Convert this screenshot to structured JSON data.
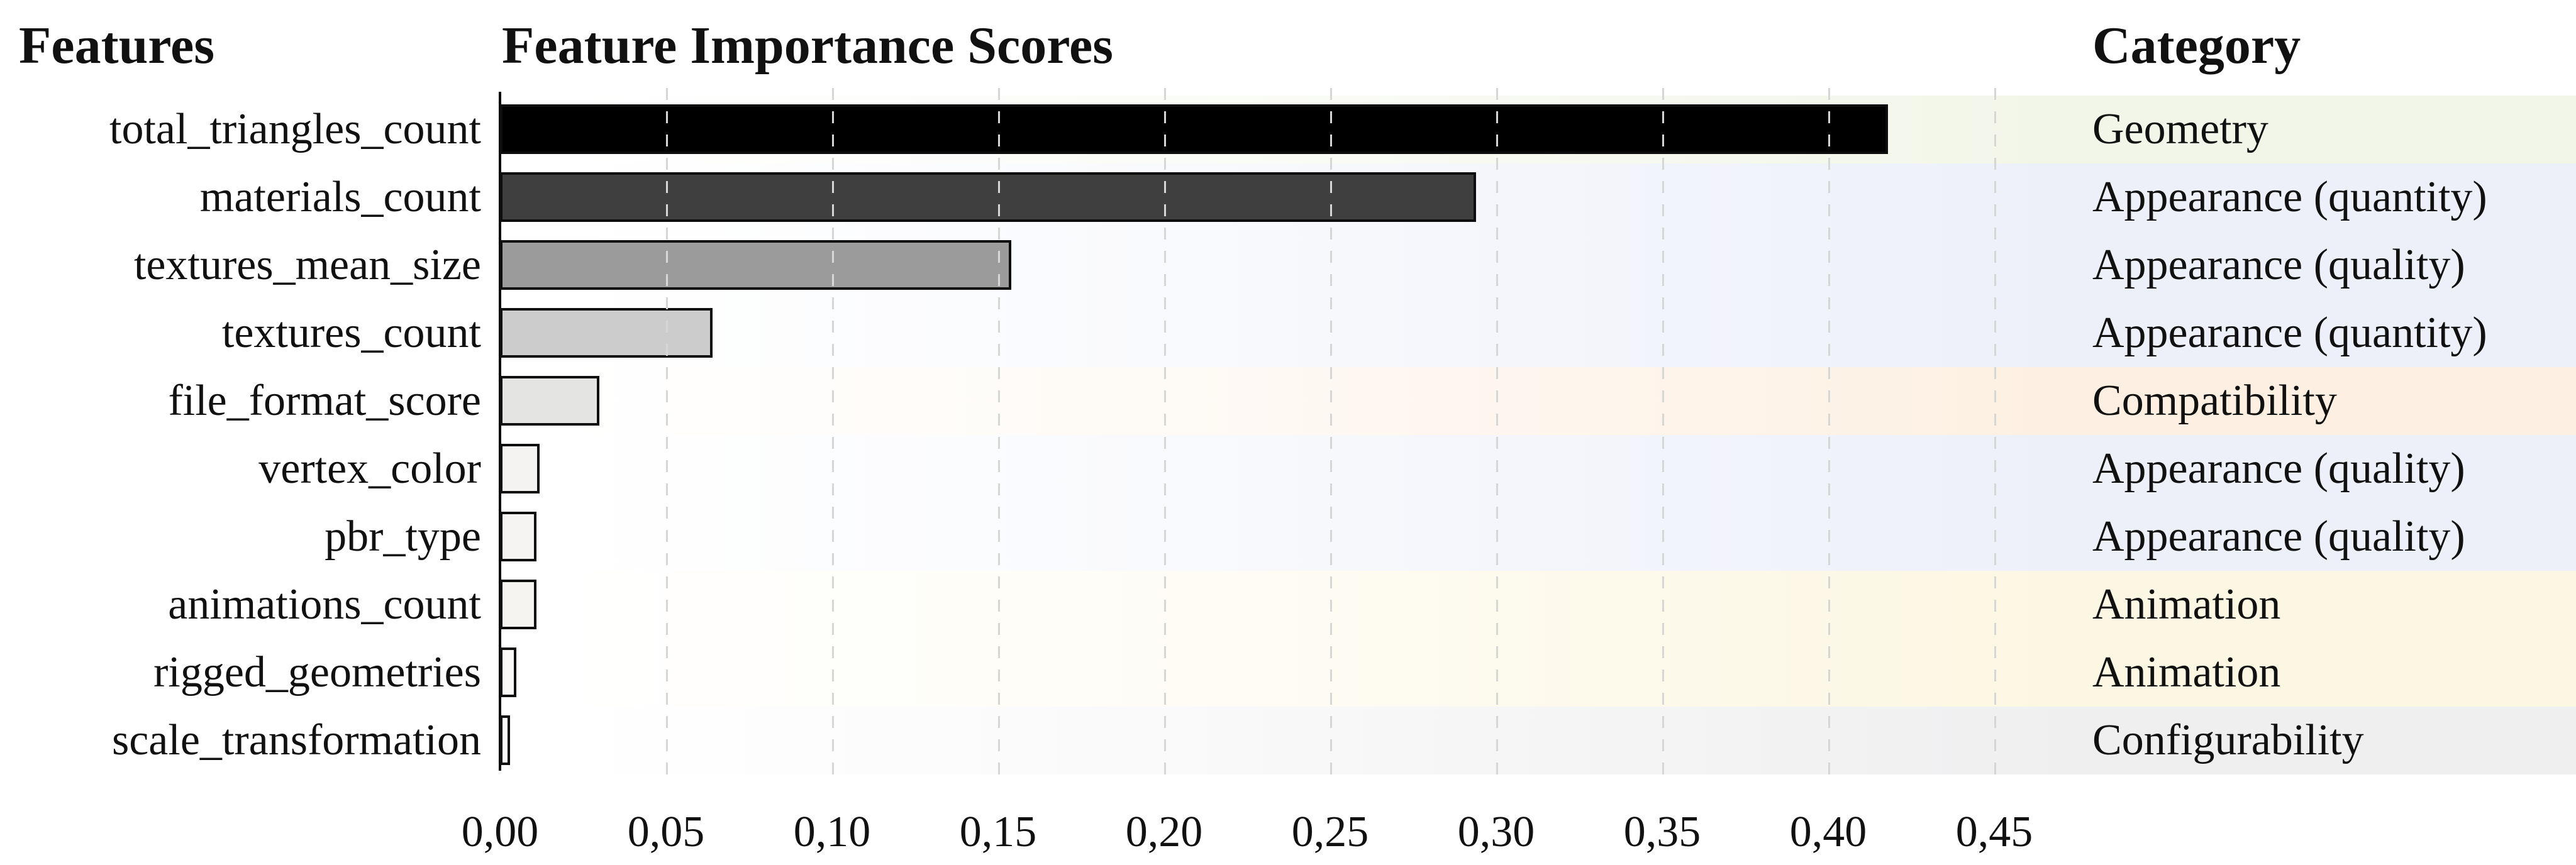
{
  "header": {
    "features_label": "Features",
    "title": "Feature Importance Scores",
    "category_label": "Category"
  },
  "chart_data": {
    "type": "bar",
    "orientation": "horizontal",
    "title": "Feature Importance Scores",
    "categories": [
      "total_triangles_count",
      "materials_count",
      "textures_mean_size",
      "textures_count",
      "file_format_score",
      "vertex_color",
      "pbr_type",
      "animations_count",
      "rigged_geometries",
      "scale_transformation"
    ],
    "values": [
      0.418,
      0.294,
      0.154,
      0.064,
      0.03,
      0.012,
      0.011,
      0.011,
      0.005,
      0.003
    ],
    "row_categories": [
      "Geometry",
      "Appearance (quantity)",
      "Appearance (quality)",
      "Appearance (quantity)",
      "Compatibility",
      "Appearance (quality)",
      "Appearance (quality)",
      "Animation",
      "Animation",
      "Configurability"
    ],
    "x_ticks": [
      "0,00",
      "0,05",
      "0,10",
      "0,15",
      "0,20",
      "0,25",
      "0,30",
      "0,35",
      "0,40",
      "0,45"
    ],
    "x_tick_values": [
      0.0,
      0.05,
      0.1,
      0.15,
      0.2,
      0.25,
      0.3,
      0.35,
      0.4,
      0.45
    ],
    "xlim": [
      0,
      0.46
    ],
    "grid": "dashed vertical gridlines at every 0.05",
    "legend_position": "none",
    "bar_colors": [
      "#000000",
      "#3f3f3f",
      "#9b9b9b",
      "#cccccc",
      "#e4e4e2",
      "#f4f3f1",
      "#f5f4f2",
      "#f5f4f1",
      "#faf9f7",
      "#fbfbfa"
    ],
    "category_tint_colors": {
      "Geometry": "#f2f6e8",
      "Appearance (quantity)": "#edf0f9",
      "Appearance (quality)": "#edf0f9",
      "Compatibility": "#fdf0e2",
      "Animation": "#fcf7e2",
      "Configurability": "#efeff0"
    },
    "axis_color": "#0d0d0d",
    "gridline_color": "#d4d7d4"
  }
}
